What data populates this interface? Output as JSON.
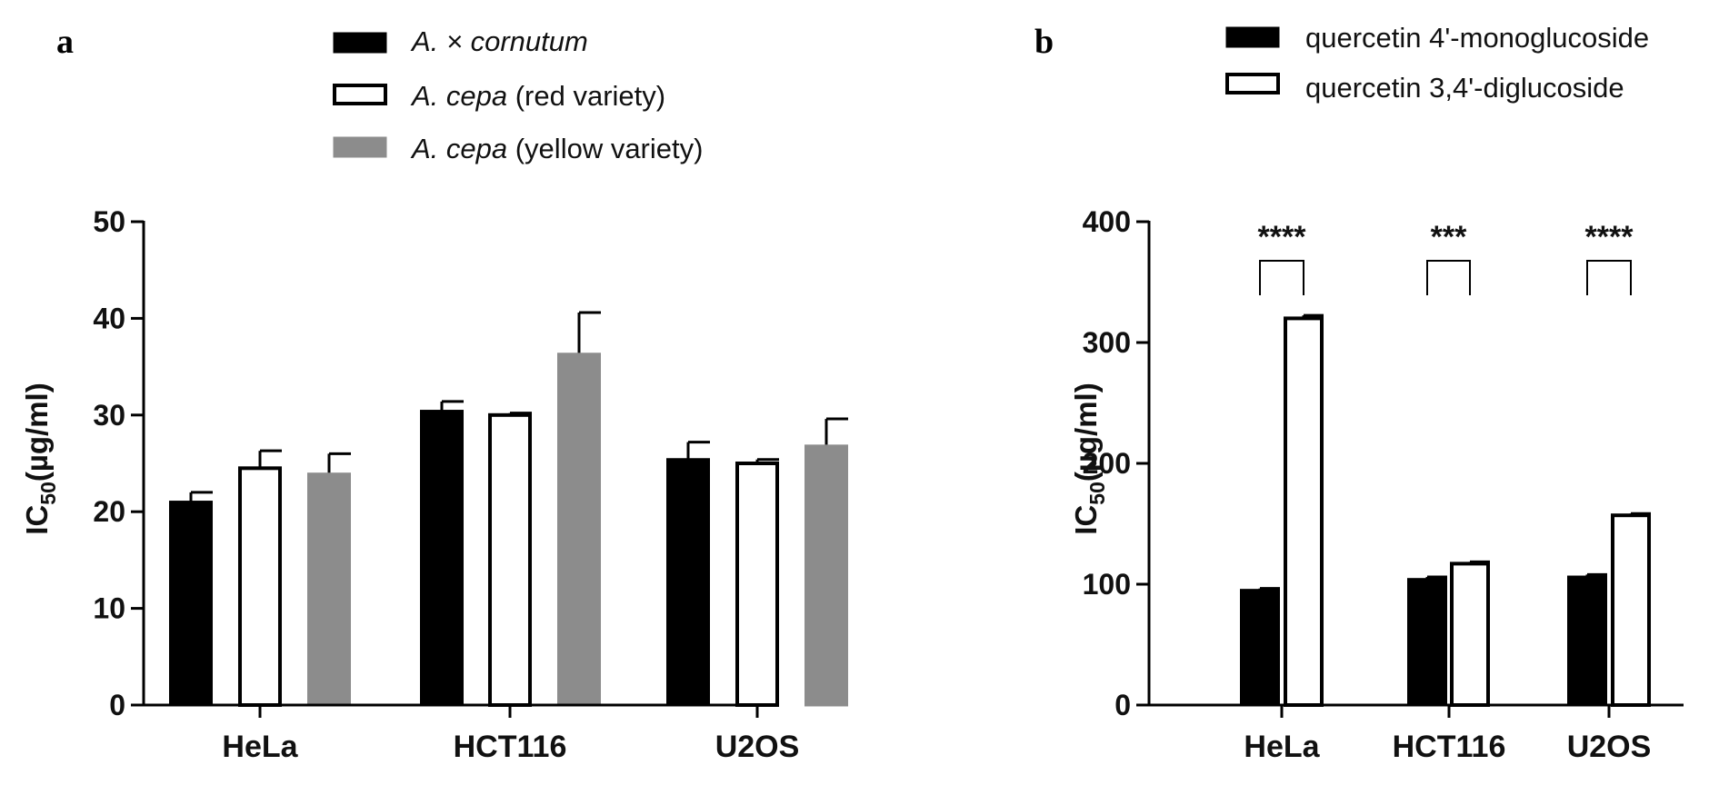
{
  "panels": [
    {
      "letter": "a",
      "ylabel_main": "IC",
      "ylabel_sub": "50",
      "ylabel_unit": "(µg/ml)",
      "legend": [
        {
          "italic": "A. × cornutum",
          "plain": ""
        },
        {
          "italic": "A. cepa",
          "plain": " (red variety)"
        },
        {
          "italic": "A. cepa",
          "plain": " (yellow variety)"
        }
      ]
    },
    {
      "letter": "b",
      "ylabel_main": "IC",
      "ylabel_sub": "50",
      "ylabel_unit": "(µg/ml)",
      "legend": [
        {
          "text": "quercetin 4'-monoglucoside"
        },
        {
          "text": "quercetin 3,4'-diglucoside"
        }
      ]
    }
  ],
  "chart_data": [
    {
      "type": "bar",
      "panel": "a",
      "categories": [
        "HeLa",
        "HCT116",
        "U2OS"
      ],
      "ylim": [
        0,
        50
      ],
      "yticks": [
        0,
        10,
        20,
        30,
        40,
        50
      ],
      "series": [
        {
          "name": "A. × cornutum",
          "color": "#000000",
          "values": [
            21.0,
            30.4,
            25.4
          ],
          "errors": [
            1.0,
            1.0,
            1.8
          ]
        },
        {
          "name": "A. cepa (red variety)",
          "color": "#ffffff",
          "values": [
            24.5,
            30.0,
            25.0
          ],
          "errors": [
            1.8,
            0.2,
            0.4
          ]
        },
        {
          "name": "A. cepa (yellow variety)",
          "color": "#8c8c8c",
          "values": [
            23.9,
            36.3,
            26.8
          ],
          "errors": [
            2.1,
            4.3,
            2.8
          ]
        }
      ],
      "significance": []
    },
    {
      "type": "bar",
      "panel": "b",
      "categories": [
        "HeLa",
        "HCT116",
        "U2OS"
      ],
      "ylim": [
        0,
        400
      ],
      "yticks": [
        0,
        100,
        200,
        300,
        400
      ],
      "series": [
        {
          "name": "quercetin 4'-monoglucoside",
          "color": "#000000",
          "values": [
            95,
            104,
            106
          ],
          "errors": [
            1.5,
            2,
            2
          ]
        },
        {
          "name": "quercetin 3,4'-diglucoside",
          "color": "#ffffff",
          "values": [
            320,
            117,
            157
          ],
          "errors": [
            2.5,
            1.5,
            1.5
          ]
        }
      ],
      "significance": [
        "****",
        "***",
        "****"
      ]
    }
  ]
}
